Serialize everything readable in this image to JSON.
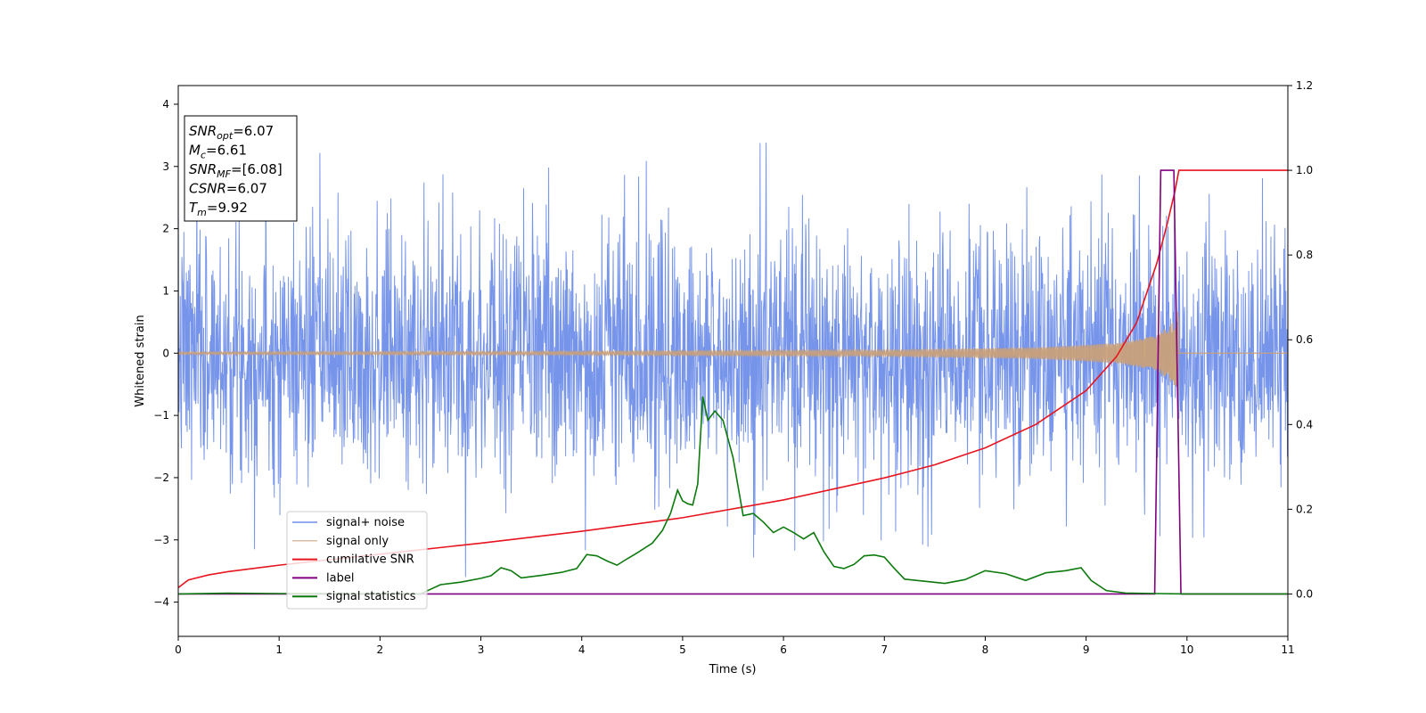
{
  "chart_data": {
    "type": "line",
    "xlabel": "Time (s)",
    "ylabel_left": "Whitened strain",
    "ylabel_right": "",
    "xlim": [
      0,
      11
    ],
    "ylim_left": [
      -4.55,
      4.3
    ],
    "ylim_right": [
      -0.1,
      1.2
    ],
    "x_ticks": [
      0,
      1,
      2,
      3,
      4,
      5,
      6,
      7,
      8,
      9,
      10,
      11
    ],
    "y_ticks_left": [
      -4,
      -3,
      -2,
      -1,
      0,
      1,
      2,
      3,
      4
    ],
    "y_ticks_right": [
      0.0,
      0.2,
      0.4,
      0.6,
      0.8,
      1.0,
      1.2
    ],
    "grid": false,
    "legend_position": "lower-left",
    "info_box": {
      "position": "top-left",
      "lines": [
        {
          "sym": "SNR",
          "sub": "opt",
          "value": "=6.07"
        },
        {
          "sym": "M",
          "sub": "c",
          "value": "=6.61"
        },
        {
          "sym": "SNR",
          "sub": "MF",
          "value": "=[6.08]"
        },
        {
          "sym": "CSNR",
          "sub": "",
          "value": "=6.07"
        },
        {
          "sym": "T",
          "sub": "m",
          "value": "=9.92"
        }
      ]
    },
    "series": [
      {
        "name": "signal+ noise",
        "axis": "left",
        "color": "#6f8ee8",
        "kind": "noise",
        "noise_sigma": 1.0,
        "sample_step": 0.004,
        "seed": 7
      },
      {
        "name": "signal only",
        "axis": "left",
        "color": "#c9a07a",
        "kind": "chirp",
        "merger_time": 9.92,
        "amplitude_points": [
          [
            0,
            0.02
          ],
          [
            4,
            0.03
          ],
          [
            7,
            0.05
          ],
          [
            8.5,
            0.09
          ],
          [
            9.3,
            0.16
          ],
          [
            9.7,
            0.28
          ],
          [
            9.9,
            0.55
          ],
          [
            9.92,
            0.8
          ]
        ]
      },
      {
        "name": "cumilative SNR",
        "axis": "right",
        "color": "#e8141e",
        "kind": "cumulative",
        "points": [
          [
            0,
            0.015
          ],
          [
            0.1,
            0.033
          ],
          [
            0.3,
            0.045
          ],
          [
            0.5,
            0.053
          ],
          [
            1,
            0.068
          ],
          [
            2,
            0.094
          ],
          [
            3,
            0.12
          ],
          [
            4,
            0.148
          ],
          [
            5,
            0.18
          ],
          [
            6,
            0.222
          ],
          [
            7,
            0.274
          ],
          [
            7.5,
            0.305
          ],
          [
            8,
            0.345
          ],
          [
            8.5,
            0.4
          ],
          [
            9,
            0.48
          ],
          [
            9.3,
            0.56
          ],
          [
            9.5,
            0.64
          ],
          [
            9.7,
            0.78
          ],
          [
            9.8,
            0.87
          ],
          [
            9.88,
            0.95
          ],
          [
            9.92,
            1.0
          ],
          [
            11,
            1.0
          ]
        ]
      },
      {
        "name": "label",
        "axis": "right",
        "color": "#800080",
        "kind": "step",
        "points": [
          [
            0,
            0.0
          ],
          [
            9.68,
            0.0
          ],
          [
            9.74,
            1.0
          ],
          [
            9.87,
            1.0
          ],
          [
            9.94,
            0.0
          ],
          [
            11,
            0.0
          ]
        ]
      },
      {
        "name": "signal statistics",
        "axis": "right",
        "color": "#0c7a0c",
        "kind": "line",
        "points": [
          [
            0,
            0.0
          ],
          [
            0.5,
            0.002
          ],
          [
            1,
            0.001
          ],
          [
            1.5,
            0.001
          ],
          [
            2,
            0.0
          ],
          [
            2.4,
            0.0
          ],
          [
            2.6,
            0.022
          ],
          [
            2.8,
            0.028
          ],
          [
            3.0,
            0.037
          ],
          [
            3.1,
            0.043
          ],
          [
            3.2,
            0.062
          ],
          [
            3.3,
            0.055
          ],
          [
            3.4,
            0.038
          ],
          [
            3.6,
            0.044
          ],
          [
            3.8,
            0.051
          ],
          [
            3.95,
            0.06
          ],
          [
            4.05,
            0.093
          ],
          [
            4.15,
            0.09
          ],
          [
            4.25,
            0.078
          ],
          [
            4.35,
            0.068
          ],
          [
            4.45,
            0.083
          ],
          [
            4.55,
            0.097
          ],
          [
            4.7,
            0.12
          ],
          [
            4.8,
            0.15
          ],
          [
            4.88,
            0.19
          ],
          [
            4.95,
            0.245
          ],
          [
            5.0,
            0.22
          ],
          [
            5.05,
            0.213
          ],
          [
            5.1,
            0.21
          ],
          [
            5.15,
            0.26
          ],
          [
            5.2,
            0.466
          ],
          [
            5.25,
            0.41
          ],
          [
            5.32,
            0.432
          ],
          [
            5.4,
            0.41
          ],
          [
            5.5,
            0.322
          ],
          [
            5.6,
            0.185
          ],
          [
            5.7,
            0.19
          ],
          [
            5.8,
            0.17
          ],
          [
            5.9,
            0.145
          ],
          [
            6.0,
            0.158
          ],
          [
            6.1,
            0.145
          ],
          [
            6.2,
            0.13
          ],
          [
            6.3,
            0.145
          ],
          [
            6.4,
            0.1
          ],
          [
            6.5,
            0.065
          ],
          [
            6.6,
            0.06
          ],
          [
            6.7,
            0.07
          ],
          [
            6.8,
            0.09
          ],
          [
            6.9,
            0.092
          ],
          [
            7.0,
            0.087
          ],
          [
            7.1,
            0.06
          ],
          [
            7.2,
            0.035
          ],
          [
            7.4,
            0.03
          ],
          [
            7.6,
            0.025
          ],
          [
            7.8,
            0.034
          ],
          [
            8.0,
            0.055
          ],
          [
            8.2,
            0.048
          ],
          [
            8.4,
            0.032
          ],
          [
            8.6,
            0.05
          ],
          [
            8.8,
            0.055
          ],
          [
            8.95,
            0.062
          ],
          [
            9.05,
            0.032
          ],
          [
            9.2,
            0.008
          ],
          [
            9.4,
            0.002
          ],
          [
            9.7,
            0.001
          ],
          [
            10,
            0.0
          ],
          [
            11,
            0.0
          ]
        ]
      }
    ]
  }
}
